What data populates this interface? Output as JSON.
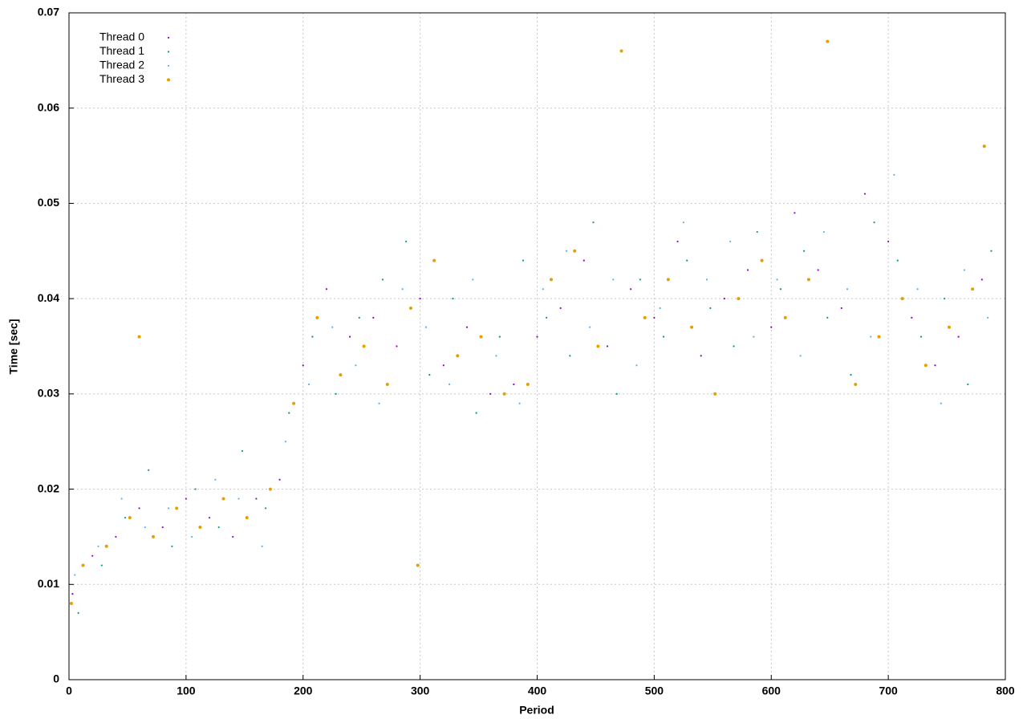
{
  "chart_data": {
    "type": "scatter",
    "x_label": "Period",
    "y_label": "Time [sec]",
    "xlim": [
      0,
      800
    ],
    "xticks": [
      0,
      100,
      200,
      300,
      400,
      500,
      600,
      700,
      800
    ],
    "ylim": [
      0,
      0.07
    ],
    "yticks": [
      0,
      0.01,
      0.02,
      0.03,
      0.04,
      0.05,
      0.06,
      0.07
    ],
    "grid": true,
    "legend": "top-left",
    "series": [
      {
        "name": "Thread 0",
        "color": "#9400d3",
        "x": [
          3,
          20,
          40,
          60,
          80,
          100,
          120,
          140,
          160,
          180,
          200,
          220,
          240,
          260,
          280,
          300,
          320,
          340,
          360,
          380,
          400,
          420,
          440,
          460,
          480,
          500,
          520,
          540,
          560,
          580,
          600,
          620,
          640,
          660,
          680,
          700,
          720,
          740,
          760,
          780
        ],
        "values": [
          0.009,
          0.013,
          0.015,
          0.018,
          0.016,
          0.019,
          0.017,
          0.015,
          0.019,
          0.021,
          0.033,
          0.041,
          0.036,
          0.038,
          0.035,
          0.04,
          0.033,
          0.037,
          0.03,
          0.031,
          0.036,
          0.039,
          0.044,
          0.035,
          0.041,
          0.038,
          0.046,
          0.034,
          0.04,
          0.043,
          0.037,
          0.049,
          0.043,
          0.039,
          0.051,
          0.046,
          0.038,
          0.033,
          0.036,
          0.042
        ]
      },
      {
        "name": "Thread 1",
        "color": "#009e73",
        "x": [
          8,
          28,
          48,
          68,
          88,
          108,
          128,
          148,
          168,
          188,
          208,
          228,
          248,
          268,
          288,
          308,
          328,
          348,
          368,
          388,
          408,
          428,
          448,
          468,
          488,
          508,
          528,
          548,
          568,
          588,
          608,
          628,
          648,
          668,
          688,
          708,
          728,
          748,
          768,
          788
        ],
        "values": [
          0.007,
          0.012,
          0.017,
          0.022,
          0.014,
          0.02,
          0.016,
          0.024,
          0.018,
          0.028,
          0.036,
          0.03,
          0.038,
          0.042,
          0.046,
          0.032,
          0.04,
          0.028,
          0.036,
          0.044,
          0.038,
          0.034,
          0.048,
          0.03,
          0.042,
          0.036,
          0.044,
          0.039,
          0.035,
          0.047,
          0.041,
          0.045,
          0.038,
          0.032,
          0.048,
          0.044,
          0.036,
          0.04,
          0.031,
          0.045
        ]
      },
      {
        "name": "Thread 2",
        "color": "#56b4e9",
        "x": [
          5,
          25,
          45,
          65,
          85,
          105,
          125,
          145,
          165,
          185,
          205,
          225,
          245,
          265,
          285,
          305,
          325,
          345,
          365,
          385,
          405,
          425,
          445,
          465,
          485,
          505,
          525,
          545,
          565,
          585,
          605,
          625,
          645,
          665,
          685,
          705,
          725,
          745,
          765,
          785
        ],
        "values": [
          0.011,
          0.014,
          0.019,
          0.016,
          0.018,
          0.015,
          0.021,
          0.019,
          0.014,
          0.025,
          0.031,
          0.037,
          0.033,
          0.029,
          0.041,
          0.037,
          0.031,
          0.042,
          0.034,
          0.029,
          0.041,
          0.045,
          0.037,
          0.042,
          0.033,
          0.039,
          0.048,
          0.042,
          0.046,
          0.036,
          0.042,
          0.034,
          0.047,
          0.041,
          0.036,
          0.053,
          0.041,
          0.029,
          0.043,
          0.038
        ]
      },
      {
        "name": "Thread 3",
        "color": "#e69f00",
        "x": [
          2,
          12,
          32,
          52,
          60,
          72,
          92,
          112,
          132,
          152,
          172,
          192,
          212,
          232,
          252,
          272,
          292,
          298,
          312,
          332,
          352,
          372,
          392,
          412,
          432,
          452,
          472,
          492,
          512,
          532,
          552,
          572,
          592,
          612,
          632,
          648,
          672,
          692,
          712,
          732,
          752,
          772,
          782
        ],
        "values": [
          0.008,
          0.012,
          0.014,
          0.017,
          0.036,
          0.015,
          0.018,
          0.016,
          0.019,
          0.017,
          0.02,
          0.029,
          0.038,
          0.032,
          0.035,
          0.031,
          0.039,
          0.012,
          0.044,
          0.034,
          0.036,
          0.03,
          0.031,
          0.042,
          0.045,
          0.035,
          0.066,
          0.038,
          0.042,
          0.037,
          0.03,
          0.04,
          0.044,
          0.038,
          0.042,
          0.067,
          0.031,
          0.036,
          0.04,
          0.033,
          0.037,
          0.041,
          0.056
        ]
      }
    ]
  }
}
